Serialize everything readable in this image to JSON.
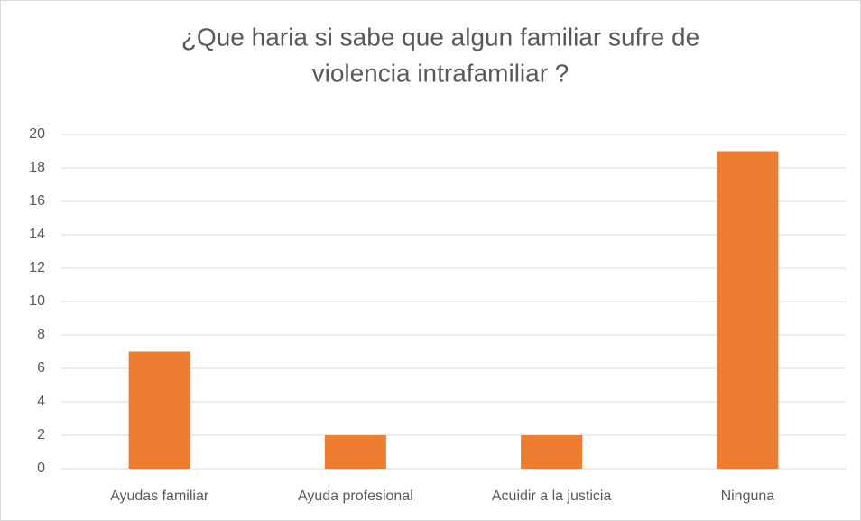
{
  "chart_data": {
    "type": "bar",
    "title": [
      "¿Que haria si sabe que algun familiar sufre de",
      "violencia intrafamiliar ?"
    ],
    "categories": [
      "Ayudas familiar",
      "Ayuda profesional",
      "Acuidir a la justicia",
      "Ninguna"
    ],
    "values": [
      7,
      2,
      2,
      19
    ],
    "color": "#ed7d31",
    "ylim": [
      0,
      20
    ],
    "yticks": [
      0,
      2,
      4,
      6,
      8,
      10,
      12,
      14,
      16,
      18,
      20
    ],
    "grid": true
  }
}
